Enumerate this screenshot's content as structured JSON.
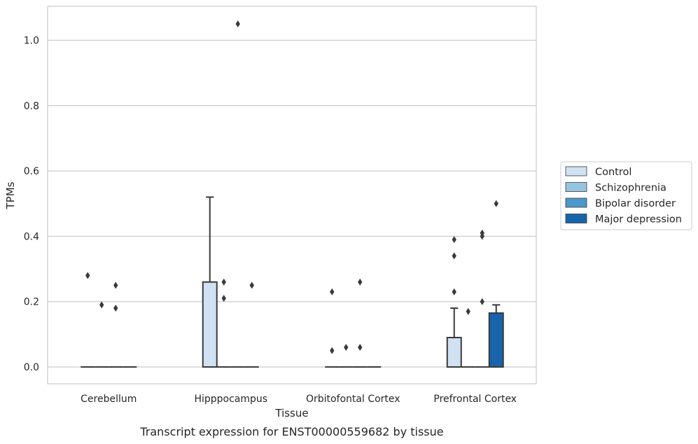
{
  "chart_data": {
    "type": "box",
    "xlabel": "Tissue",
    "ylabel": "TPMs",
    "caption": "Transcript expression for ENST00000559682 by tissue",
    "ylim": [
      -0.05,
      1.1
    ],
    "yticks": [
      0.0,
      0.2,
      0.4,
      0.6,
      0.8,
      1.0
    ],
    "ytick_labels": [
      "0.0",
      "0.2",
      "0.4",
      "0.6",
      "0.8",
      "1.0"
    ],
    "grid": true,
    "legend_placement": "right-center",
    "categories": [
      "Cerebellum",
      "Hipppocampus",
      "Orbitofontal Cortex",
      "Prefrontal Cortex"
    ],
    "series": [
      {
        "name": "Control",
        "color": "#d0e1f2",
        "boxes": [
          {
            "q1": 0,
            "median": 0,
            "q3": 0,
            "whisker_low": 0,
            "whisker_high": 0,
            "outliers": [
              0.28
            ]
          },
          {
            "q1": 0,
            "median": 0,
            "q3": 0.26,
            "whisker_low": 0,
            "whisker_high": 0.52,
            "outliers": []
          },
          {
            "q1": 0,
            "median": 0,
            "q3": 0,
            "whisker_low": 0,
            "whisker_high": 0,
            "outliers": [
              0.23,
              0.05
            ]
          },
          {
            "q1": 0,
            "median": 0,
            "q3": 0.09,
            "whisker_low": 0,
            "whisker_high": 0.18,
            "outliers": [
              0.39,
              0.34,
              0.23
            ]
          }
        ]
      },
      {
        "name": "Schizophrenia",
        "color": "#94c4df",
        "boxes": [
          {
            "q1": 0,
            "median": 0,
            "q3": 0,
            "whisker_low": 0,
            "whisker_high": 0,
            "outliers": [
              0.19
            ]
          },
          {
            "q1": 0,
            "median": 0,
            "q3": 0,
            "whisker_low": 0,
            "whisker_high": 0,
            "outliers": [
              0.26,
              0.21
            ]
          },
          {
            "q1": 0,
            "median": 0,
            "q3": 0,
            "whisker_low": 0,
            "whisker_high": 0,
            "outliers": [
              0.06
            ]
          },
          {
            "q1": 0,
            "median": 0,
            "q3": 0,
            "whisker_low": 0,
            "whisker_high": 0,
            "outliers": [
              0.17
            ]
          }
        ]
      },
      {
        "name": "Bipolar disorder",
        "color": "#4a98c9",
        "boxes": [
          {
            "q1": 0,
            "median": 0,
            "q3": 0,
            "whisker_low": 0,
            "whisker_high": 0,
            "outliers": [
              0.25,
              0.18
            ]
          },
          {
            "q1": 0,
            "median": 0,
            "q3": 0,
            "whisker_low": 0,
            "whisker_high": 0,
            "outliers": [
              1.05
            ]
          },
          {
            "q1": 0,
            "median": 0,
            "q3": 0,
            "whisker_low": 0,
            "whisker_high": 0,
            "outliers": [
              0.26,
              0.06
            ]
          },
          {
            "q1": 0,
            "median": 0,
            "q3": 0,
            "whisker_low": 0,
            "whisker_high": 0,
            "outliers": [
              0.41,
              0.4,
              0.2
            ]
          }
        ]
      },
      {
        "name": "Major depression",
        "color": "#1764ab",
        "boxes": [
          {
            "q1": 0,
            "median": 0,
            "q3": 0,
            "whisker_low": 0,
            "whisker_high": 0,
            "outliers": []
          },
          {
            "q1": 0,
            "median": 0,
            "q3": 0,
            "whisker_low": 0,
            "whisker_high": 0,
            "outliers": [
              0.25
            ]
          },
          {
            "q1": 0,
            "median": 0,
            "q3": 0,
            "whisker_low": 0,
            "whisker_high": 0,
            "outliers": []
          },
          {
            "q1": 0,
            "median": 0,
            "q3": 0.165,
            "whisker_low": 0,
            "whisker_high": 0.19,
            "outliers": [
              0.5
            ]
          }
        ]
      }
    ]
  }
}
